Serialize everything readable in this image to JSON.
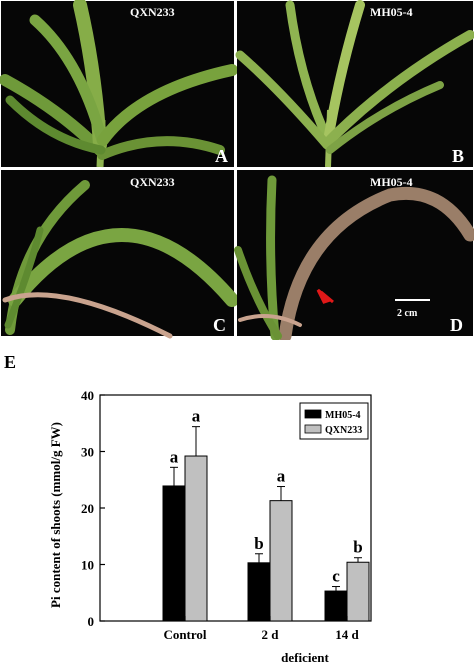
{
  "photo_panels": [
    {
      "label": "QXN233",
      "letter": "A"
    },
    {
      "label": "MH05-4",
      "letter": "B"
    },
    {
      "label": "QXN233",
      "letter": "C"
    },
    {
      "label": "MH05-4",
      "letter": "D"
    }
  ],
  "scale_bar_label": "2 cm",
  "colors": {
    "photo_bg": "#060606",
    "leaf_green": "#6f9a3a",
    "leaf_light": "#9cbc5a",
    "leaf_pink": "#c9a38e",
    "arrow_red": "#e01818",
    "bar_dark": "#000000",
    "bar_light": "#c0c0c0"
  },
  "chart_data": {
    "type": "bar",
    "panel_letter": "E",
    "ylabel": "Pi content of shoots (mmol/g FW)",
    "ylim": [
      0,
      40
    ],
    "yticks": [
      0,
      10,
      20,
      30,
      40
    ],
    "categories": [
      "Control",
      "2 d",
      "14 d"
    ],
    "xgroup_label": "deficient",
    "series": [
      {
        "name": "MH05-4",
        "color": "#000000",
        "values": [
          23.9,
          10.3,
          5.3
        ],
        "errors": [
          3.3,
          1.6,
          0.8
        ],
        "letters": [
          "a",
          "b",
          "c"
        ]
      },
      {
        "name": "QXN233",
        "color": "#c0c0c0",
        "values": [
          29.2,
          21.3,
          10.4
        ],
        "errors": [
          5.2,
          2.5,
          0.8
        ],
        "letters": [
          "a",
          "a",
          "b"
        ]
      }
    ],
    "legend_position": "top-right",
    "grid": false
  }
}
